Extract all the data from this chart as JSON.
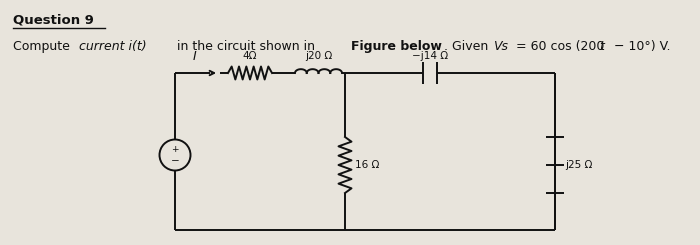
{
  "bg_color": "#e8e4dc",
  "text_color": "#111111",
  "title": "Question 9",
  "sub_normal1": "Compute ",
  "sub_italic": "current i(t)",
  "sub_normal2": " in the circuit shown in ",
  "sub_bold": "Figure below",
  "sub_normal3": ". Given ",
  "sub_italic2": "Vs",
  "sub_normal4": " = 60 cos (200",
  "sub_italic3": "t",
  "sub_normal5": " − 10°) V.",
  "lc": "#111111",
  "lw": 1.4,
  "label_4": "4Ω",
  "label_j20": "j20 Ω",
  "label_neg14": "−j14 Ω",
  "label_16": "16 Ω",
  "label_j25": "j25 Ω",
  "label_I": "I"
}
